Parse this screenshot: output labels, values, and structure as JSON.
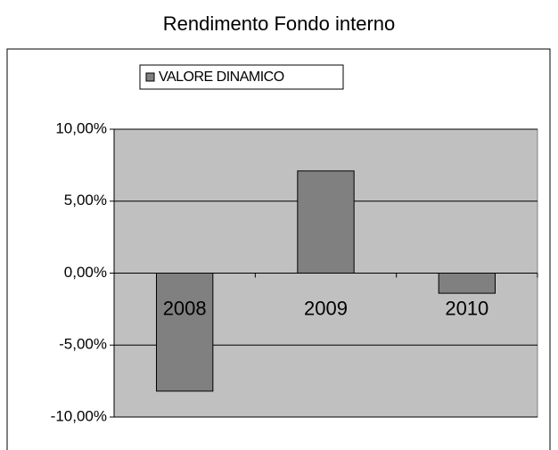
{
  "chart_data": {
    "type": "bar",
    "title": "Rendimento Fondo interno",
    "categories": [
      "2008",
      "2009",
      "2010"
    ],
    "series": [
      {
        "name": "VALORE DINAMICO",
        "color": "#808080",
        "values": [
          -8.2,
          7.1,
          -1.4
        ]
      }
    ],
    "ylim": [
      -10,
      10
    ],
    "yticks": [
      {
        "value": -10,
        "label": "-10,00%"
      },
      {
        "value": -5,
        "label": "-5,00%"
      },
      {
        "value": 0,
        "label": "0,00%"
      },
      {
        "value": 5,
        "label": "5,00%"
      },
      {
        "value": 10,
        "label": "10,00%"
      }
    ],
    "grid": true,
    "plot_background": "#c0c0c0",
    "legend": "top"
  }
}
